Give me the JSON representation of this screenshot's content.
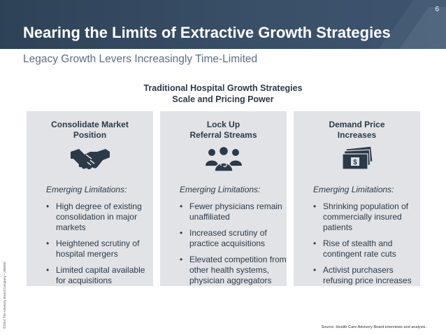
{
  "page_number": "6",
  "title": "Nearing the Limits of Extractive Growth Strategies",
  "subtitle": "Legacy Growth Levers Increasingly Time-Limited",
  "section": {
    "line1": "Traditional Hospital Growth Strategies",
    "line2": "Scale and Pricing Power"
  },
  "columns": [
    {
      "title_line1": "Consolidate Market",
      "title_line2": "Position",
      "icon": "handshake-icon",
      "limitations_label": "Emerging Limitations:",
      "items": [
        "High degree of existing consolidation in major markets",
        "Heightened scrutiny of hospital mergers",
        "Limited capital available for acquisitions"
      ]
    },
    {
      "title_line1": "Lock Up",
      "title_line2": "Referral Streams",
      "icon": "physician-group-icon",
      "limitations_label": "Emerging Limitations:",
      "items": [
        "Fewer physicians remain unaffiliated",
        "Increased scrutiny of practice acquisitions",
        "Elevated competition from other health systems, physician aggregators"
      ]
    },
    {
      "title_line1": "Demand Price",
      "title_line2": "Increases",
      "icon": "money-stack-icon",
      "limitations_label": "Emerging Limitations:",
      "items": [
        "Shrinking population of commercially insured patients",
        "Rise of stealth and contingent rate cuts",
        "Activist purchasers refusing price increases"
      ]
    }
  ],
  "copyright": "©2014 The Advisory Board Company • 28838C",
  "source": "Source: Health Care Advisory Board interviews and analysis.",
  "colors": {
    "header": "#2e4257",
    "panel": "#e1e3e6",
    "text": "#2c3a48"
  }
}
